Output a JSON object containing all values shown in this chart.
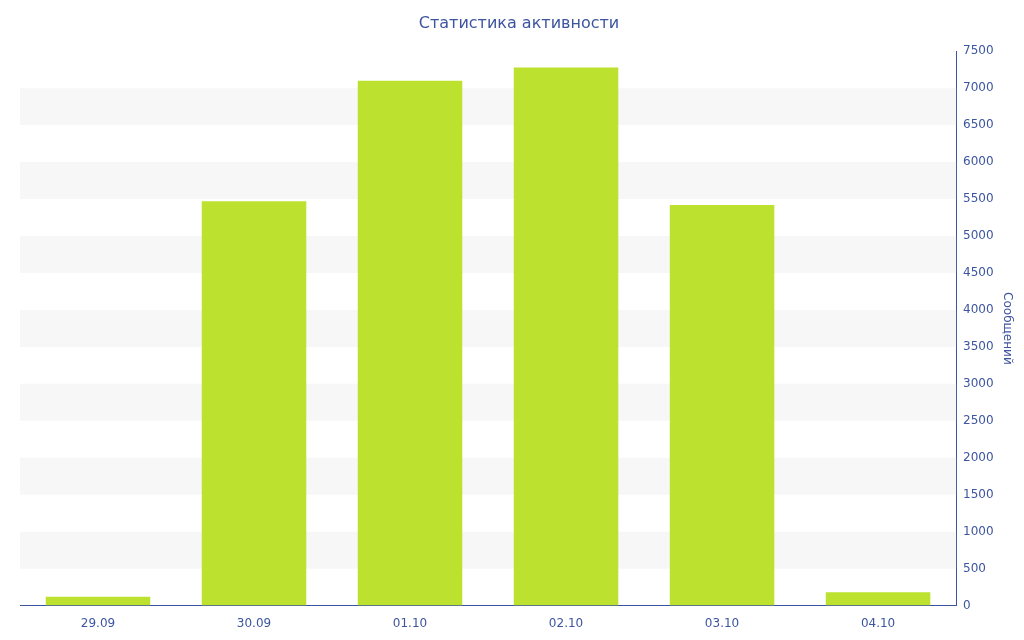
{
  "chart_data": {
    "type": "bar",
    "title": "Статистика активности",
    "ylabel": "Сообщений",
    "categories": [
      "29.09",
      "30.09",
      "01.10",
      "02.10",
      "03.10",
      "04.10"
    ],
    "values": [
      120,
      5470,
      7100,
      7280,
      5420,
      180
    ],
    "color": "#bce12f",
    "ylim": [
      0,
      7500
    ],
    "yticks": [
      0,
      500,
      1000,
      1500,
      2000,
      2500,
      3000,
      3500,
      4000,
      4500,
      5000,
      5500,
      6000,
      6500,
      7000,
      7500
    ],
    "bands": [
      {
        "axis": "y",
        "from": 500,
        "to": 1000,
        "color": "#f7f7f7"
      },
      {
        "axis": "y",
        "from": 1500,
        "to": 2000,
        "color": "#f7f7f7"
      },
      {
        "axis": "y",
        "from": 2500,
        "to": 3000,
        "color": "#f7f7f7"
      },
      {
        "axis": "y",
        "from": 3500,
        "to": 4000,
        "color": "#f7f7f7"
      },
      {
        "axis": "y",
        "from": 4500,
        "to": 5000,
        "color": "#f7f7f7"
      },
      {
        "axis": "y",
        "from": 5500,
        "to": 6000,
        "color": "#f7f7f7"
      },
      {
        "axis": "y",
        "from": 6500,
        "to": 7000,
        "color": "#f7f7f7"
      }
    ],
    "legend": false
  }
}
